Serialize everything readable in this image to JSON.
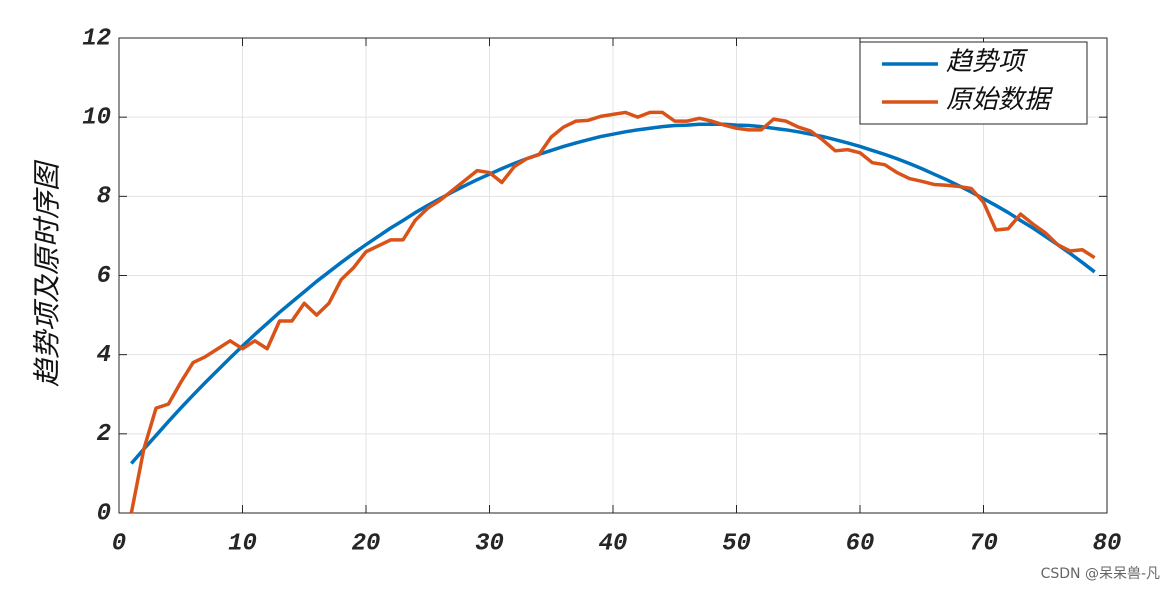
{
  "chart_data": {
    "type": "line",
    "ylabel": "趋势项及原时序图",
    "watermark": "CSDN @呆呆兽-凡",
    "x": [
      1,
      2,
      3,
      4,
      5,
      6,
      7,
      8,
      9,
      10,
      11,
      12,
      13,
      14,
      15,
      16,
      17,
      18,
      19,
      20,
      21,
      22,
      23,
      24,
      25,
      26,
      27,
      28,
      29,
      30,
      31,
      32,
      33,
      34,
      35,
      36,
      37,
      38,
      39,
      40,
      41,
      42,
      43,
      44,
      45,
      46,
      47,
      48,
      49,
      50,
      51,
      52,
      53,
      54,
      55,
      56,
      57,
      58,
      59,
      60,
      61,
      62,
      63,
      64,
      65,
      66,
      67,
      68,
      69,
      70,
      71,
      72,
      73,
      74,
      75,
      76,
      77,
      78,
      79
    ],
    "series": [
      {
        "name": "趋势项",
        "color": "#0072bd",
        "values": [
          1.25,
          1.61,
          1.96,
          2.31,
          2.65,
          2.98,
          3.3,
          3.61,
          3.92,
          4.22,
          4.51,
          4.79,
          5.07,
          5.33,
          5.59,
          5.85,
          6.09,
          6.33,
          6.56,
          6.78,
          6.99,
          7.2,
          7.39,
          7.59,
          7.77,
          7.94,
          8.11,
          8.27,
          8.42,
          8.56,
          8.7,
          8.83,
          8.95,
          9.06,
          9.16,
          9.26,
          9.35,
          9.43,
          9.51,
          9.57,
          9.63,
          9.68,
          9.72,
          9.76,
          9.79,
          9.8,
          9.82,
          9.82,
          9.82,
          9.8,
          9.79,
          9.76,
          9.72,
          9.68,
          9.63,
          9.57,
          9.51,
          9.43,
          9.35,
          9.26,
          9.16,
          9.06,
          8.95,
          8.83,
          8.7,
          8.56,
          8.42,
          8.27,
          8.11,
          7.94,
          7.77,
          7.59,
          7.39,
          7.2,
          6.99,
          6.78,
          6.56,
          6.33,
          6.09
        ]
      },
      {
        "name": "原始数据",
        "color": "#d95319",
        "values": [
          0,
          1.6,
          2.65,
          2.75,
          3.3,
          3.8,
          3.95,
          4.15,
          4.35,
          4.15,
          4.35,
          4.15,
          4.85,
          4.85,
          5.3,
          5.0,
          5.3,
          5.9,
          6.2,
          6.6,
          6.75,
          6.9,
          6.9,
          7.4,
          7.7,
          7.9,
          8.15,
          8.4,
          8.65,
          8.6,
          8.35,
          8.75,
          8.95,
          9.05,
          9.5,
          9.75,
          9.9,
          9.92,
          10.02,
          10.07,
          10.12,
          10.0,
          10.12,
          10.12,
          9.9,
          9.9,
          9.97,
          9.9,
          9.8,
          9.72,
          9.68,
          9.68,
          9.95,
          9.9,
          9.75,
          9.65,
          9.42,
          9.15,
          9.18,
          9.1,
          8.85,
          8.8,
          8.6,
          8.45,
          8.38,
          8.3,
          8.28,
          8.25,
          8.2,
          7.85,
          7.15,
          7.18,
          7.55,
          7.3,
          7.08,
          6.78,
          6.62,
          6.65,
          6.45
        ]
      }
    ],
    "xlim": [
      0,
      80
    ],
    "xticks": [
      0,
      10,
      20,
      30,
      40,
      50,
      60,
      70,
      80
    ],
    "ylim": [
      0,
      12
    ],
    "yticks": [
      0,
      2,
      4,
      6,
      8,
      10,
      12
    ],
    "grid": true,
    "legend": "northeast"
  }
}
